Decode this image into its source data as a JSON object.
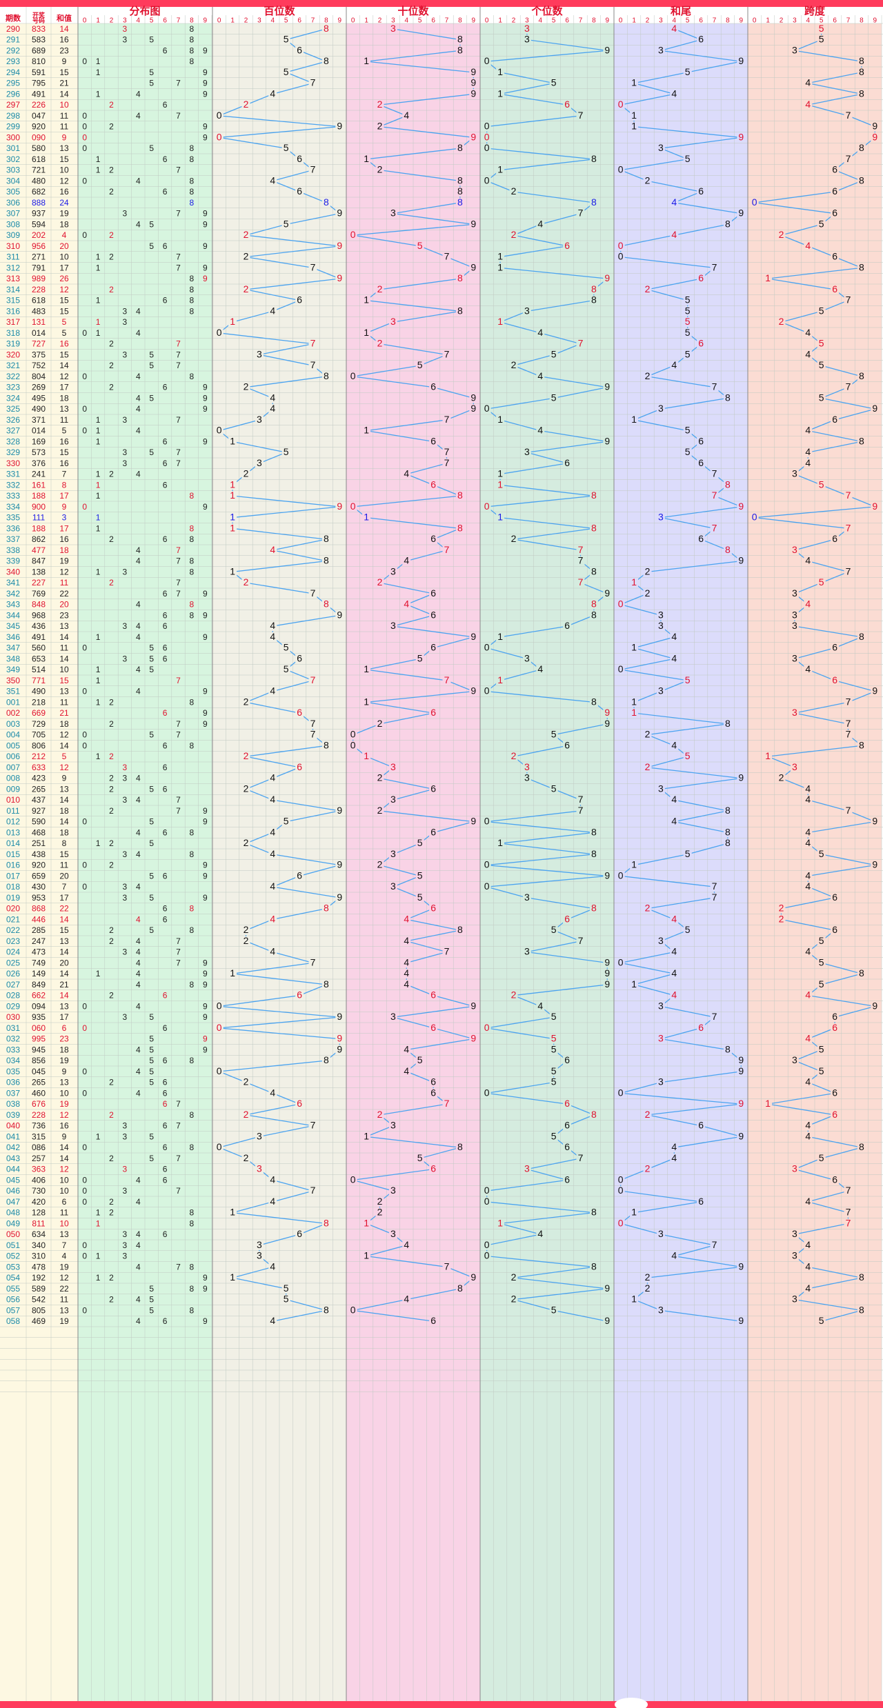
{
  "headers": {
    "period": "期数",
    "number": "开奖号码",
    "sum": "和值",
    "distribution": "分布图",
    "hundreds": "百位数",
    "tens": "十位数",
    "units": "个位数",
    "sum_tail": "和尾",
    "span": "跨度"
  },
  "digits": [
    "0",
    "1",
    "2",
    "3",
    "4",
    "5",
    "6",
    "7",
    "8",
    "9"
  ],
  "colors": {
    "top_bar": "#ff3b5c",
    "header_text": "#e0102e",
    "period_normal": "#1a8aa8",
    "period_red": "#e0102e",
    "number_red": "#e0102e",
    "number_blue": "#1a1ae6",
    "line": "#4aa3f0",
    "dist_bg": "#d7f5df",
    "hund_bg": "#f1f0e6",
    "tens_bg": "#f9d3e6",
    "units_bg": "#d5ecdf",
    "tail_bg": "#dcdcfb",
    "span_bg": "#fbdcd3",
    "left_bg": "#fdf8e2"
  },
  "chart_data": {
    "type": "table",
    "columns": [
      "期数",
      "开奖号码",
      "和值",
      "分布图",
      "百位数",
      "十位数",
      "个位数",
      "和尾",
      "跨度"
    ],
    "rows": [
      {
        "p": "290",
        "n": "833",
        "s": "14"
      },
      {
        "p": "291",
        "n": "583",
        "s": "16"
      },
      {
        "p": "292",
        "n": "689",
        "s": "23"
      },
      {
        "p": "293",
        "n": "810",
        "s": "9"
      },
      {
        "p": "294",
        "n": "591",
        "s": "15"
      },
      {
        "p": "295",
        "n": "795",
        "s": "21"
      },
      {
        "p": "296",
        "n": "491",
        "s": "14"
      },
      {
        "p": "297",
        "n": "226",
        "s": "10"
      },
      {
        "p": "298",
        "n": "047",
        "s": "11"
      },
      {
        "p": "299",
        "n": "920",
        "s": "11"
      },
      {
        "p": "300",
        "n": "090",
        "s": "9"
      },
      {
        "p": "301",
        "n": "580",
        "s": "13"
      },
      {
        "p": "302",
        "n": "618",
        "s": "15"
      },
      {
        "p": "303",
        "n": "721",
        "s": "10"
      },
      {
        "p": "304",
        "n": "480",
        "s": "12"
      },
      {
        "p": "305",
        "n": "682",
        "s": "16"
      },
      {
        "p": "306",
        "n": "888",
        "s": "24"
      },
      {
        "p": "307",
        "n": "937",
        "s": "19"
      },
      {
        "p": "308",
        "n": "594",
        "s": "18"
      },
      {
        "p": "309",
        "n": "202",
        "s": "4"
      },
      {
        "p": "310",
        "n": "956",
        "s": "20"
      },
      {
        "p": "311",
        "n": "271",
        "s": "10"
      },
      {
        "p": "312",
        "n": "791",
        "s": "17"
      },
      {
        "p": "313",
        "n": "989",
        "s": "26"
      },
      {
        "p": "314",
        "n": "228",
        "s": "12"
      },
      {
        "p": "315",
        "n": "618",
        "s": "15"
      },
      {
        "p": "316",
        "n": "483",
        "s": "15"
      },
      {
        "p": "317",
        "n": "131",
        "s": "5"
      },
      {
        "p": "318",
        "n": "014",
        "s": "5"
      },
      {
        "p": "319",
        "n": "727",
        "s": "16"
      },
      {
        "p": "320",
        "n": "375",
        "s": "15"
      },
      {
        "p": "321",
        "n": "752",
        "s": "14"
      },
      {
        "p": "322",
        "n": "804",
        "s": "12"
      },
      {
        "p": "323",
        "n": "269",
        "s": "17"
      },
      {
        "p": "324",
        "n": "495",
        "s": "18"
      },
      {
        "p": "325",
        "n": "490",
        "s": "13"
      },
      {
        "p": "326",
        "n": "371",
        "s": "11"
      },
      {
        "p": "327",
        "n": "014",
        "s": "5"
      },
      {
        "p": "328",
        "n": "169",
        "s": "16"
      },
      {
        "p": "329",
        "n": "573",
        "s": "15"
      },
      {
        "p": "330",
        "n": "376",
        "s": "16"
      },
      {
        "p": "331",
        "n": "241",
        "s": "7"
      },
      {
        "p": "332",
        "n": "161",
        "s": "8"
      },
      {
        "p": "333",
        "n": "188",
        "s": "17"
      },
      {
        "p": "334",
        "n": "900",
        "s": "9"
      },
      {
        "p": "335",
        "n": "111",
        "s": "3"
      },
      {
        "p": "336",
        "n": "188",
        "s": "17"
      },
      {
        "p": "337",
        "n": "862",
        "s": "16"
      },
      {
        "p": "338",
        "n": "477",
        "s": "18"
      },
      {
        "p": "339",
        "n": "847",
        "s": "19"
      },
      {
        "p": "340",
        "n": "138",
        "s": "12"
      },
      {
        "p": "341",
        "n": "227",
        "s": "11"
      },
      {
        "p": "342",
        "n": "769",
        "s": "22"
      },
      {
        "p": "343",
        "n": "848",
        "s": "20"
      },
      {
        "p": "344",
        "n": "968",
        "s": "23"
      },
      {
        "p": "345",
        "n": "436",
        "s": "13"
      },
      {
        "p": "346",
        "n": "491",
        "s": "14"
      },
      {
        "p": "347",
        "n": "560",
        "s": "11"
      },
      {
        "p": "348",
        "n": "653",
        "s": "14"
      },
      {
        "p": "349",
        "n": "514",
        "s": "10"
      },
      {
        "p": "350",
        "n": "771",
        "s": "15"
      },
      {
        "p": "351",
        "n": "490",
        "s": "13"
      },
      {
        "p": "001",
        "n": "218",
        "s": "11"
      },
      {
        "p": "002",
        "n": "669",
        "s": "21"
      },
      {
        "p": "003",
        "n": "729",
        "s": "18"
      },
      {
        "p": "004",
        "n": "705",
        "s": "12"
      },
      {
        "p": "005",
        "n": "806",
        "s": "14"
      },
      {
        "p": "006",
        "n": "212",
        "s": "5"
      },
      {
        "p": "007",
        "n": "633",
        "s": "12"
      },
      {
        "p": "008",
        "n": "423",
        "s": "9"
      },
      {
        "p": "009",
        "n": "265",
        "s": "13"
      },
      {
        "p": "010",
        "n": "437",
        "s": "14"
      },
      {
        "p": "011",
        "n": "927",
        "s": "18"
      },
      {
        "p": "012",
        "n": "590",
        "s": "14"
      },
      {
        "p": "013",
        "n": "468",
        "s": "18"
      },
      {
        "p": "014",
        "n": "251",
        "s": "8"
      },
      {
        "p": "015",
        "n": "438",
        "s": "15"
      },
      {
        "p": "016",
        "n": "920",
        "s": "11"
      },
      {
        "p": "017",
        "n": "659",
        "s": "20"
      },
      {
        "p": "018",
        "n": "430",
        "s": "7"
      },
      {
        "p": "019",
        "n": "953",
        "s": "17"
      },
      {
        "p": "020",
        "n": "868",
        "s": "22"
      },
      {
        "p": "021",
        "n": "446",
        "s": "14"
      },
      {
        "p": "022",
        "n": "285",
        "s": "15"
      },
      {
        "p": "023",
        "n": "247",
        "s": "13"
      },
      {
        "p": "024",
        "n": "473",
        "s": "14"
      },
      {
        "p": "025",
        "n": "749",
        "s": "20"
      },
      {
        "p": "026",
        "n": "149",
        "s": "14"
      },
      {
        "p": "027",
        "n": "849",
        "s": "21"
      },
      {
        "p": "028",
        "n": "662",
        "s": "14"
      },
      {
        "p": "029",
        "n": "094",
        "s": "13"
      },
      {
        "p": "030",
        "n": "935",
        "s": "17"
      },
      {
        "p": "031",
        "n": "060",
        "s": "6"
      },
      {
        "p": "032",
        "n": "995",
        "s": "23"
      },
      {
        "p": "033",
        "n": "945",
        "s": "18"
      },
      {
        "p": "034",
        "n": "856",
        "s": "19"
      },
      {
        "p": "035",
        "n": "045",
        "s": "9"
      },
      {
        "p": "036",
        "n": "265",
        "s": "13"
      },
      {
        "p": "037",
        "n": "460",
        "s": "10"
      },
      {
        "p": "038",
        "n": "676",
        "s": "19"
      },
      {
        "p": "039",
        "n": "228",
        "s": "12"
      },
      {
        "p": "040",
        "n": "736",
        "s": "16"
      },
      {
        "p": "041",
        "n": "315",
        "s": "9"
      },
      {
        "p": "042",
        "n": "086",
        "s": "14"
      },
      {
        "p": "043",
        "n": "257",
        "s": "14"
      },
      {
        "p": "044",
        "n": "363",
        "s": "12"
      },
      {
        "p": "045",
        "n": "406",
        "s": "10"
      },
      {
        "p": "046",
        "n": "730",
        "s": "10"
      },
      {
        "p": "047",
        "n": "420",
        "s": "6"
      },
      {
        "p": "048",
        "n": "128",
        "s": "11"
      },
      {
        "p": "049",
        "n": "811",
        "s": "10"
      },
      {
        "p": "050",
        "n": "634",
        "s": "13"
      },
      {
        "p": "051",
        "n": "340",
        "s": "7"
      },
      {
        "p": "052",
        "n": "310",
        "s": "4"
      },
      {
        "p": "053",
        "n": "478",
        "s": "19"
      },
      {
        "p": "054",
        "n": "192",
        "s": "12"
      },
      {
        "p": "055",
        "n": "589",
        "s": "22"
      },
      {
        "p": "056",
        "n": "542",
        "s": "11"
      },
      {
        "p": "057",
        "n": "805",
        "s": "13"
      },
      {
        "p": "058",
        "n": "469",
        "s": "19"
      }
    ]
  }
}
